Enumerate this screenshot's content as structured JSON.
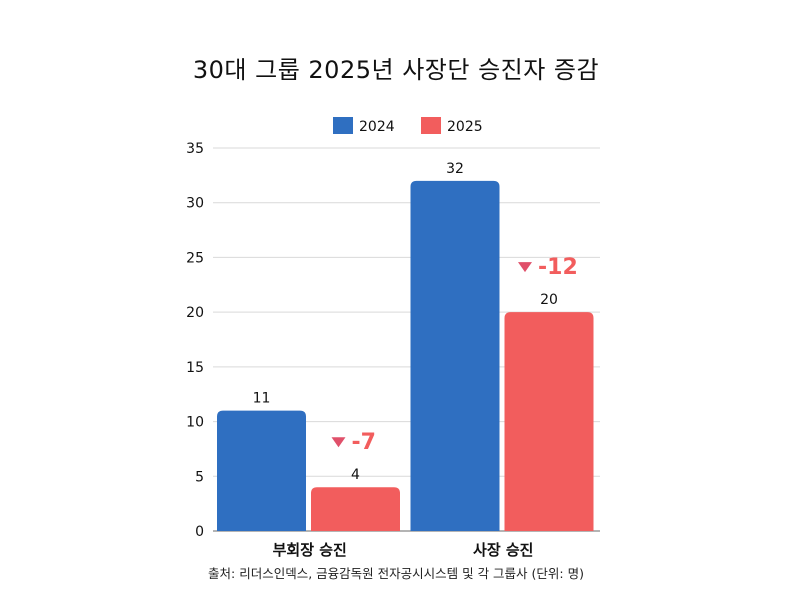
{
  "chart_data": {
    "type": "bar",
    "title": "30대 그룹 2025년 사장단 승진자 증감",
    "categories": [
      "부회장 승진",
      "사장 승진"
    ],
    "series": [
      {
        "name": "2024",
        "color": "#2f6fc1",
        "values": [
          11,
          32
        ]
      },
      {
        "name": "2025",
        "color": "#f25d5d",
        "values": [
          4,
          20
        ]
      }
    ],
    "changes": [
      "-7",
      "-12"
    ],
    "change_color": "#f25d5d",
    "change_marker_color": "#e0506a",
    "ylim": [
      0,
      35
    ],
    "yticks": [
      0,
      5,
      10,
      15,
      20,
      25,
      30,
      35
    ],
    "grid": true,
    "legend": "top-center",
    "xlabel": "",
    "ylabel": "",
    "source": "출처: 리더스인덱스, 금융감독원 전자공시시스템 및 각 그룹사 (단위: 명)"
  }
}
